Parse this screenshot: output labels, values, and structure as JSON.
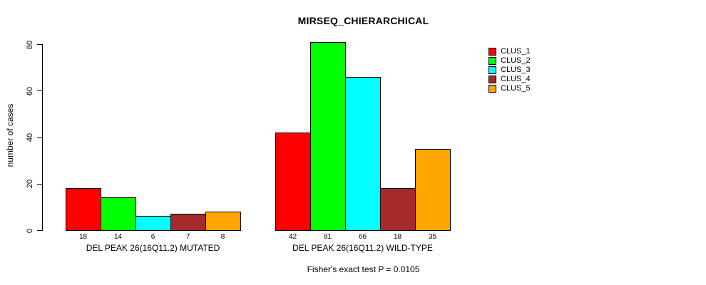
{
  "chart_data": {
    "type": "bar",
    "title": "MIRSEQ_CHIERARCHICAL",
    "ylabel": "number of cases",
    "xlabel": "",
    "ylim": [
      0,
      81
    ],
    "yticks": [
      0,
      20,
      40,
      60,
      80
    ],
    "grid": false,
    "legend_position": "top-right-inside",
    "categories": [
      "DEL PEAK 26(16Q11.2) MUTATED",
      "DEL PEAK 26(16Q11.2) WILD-TYPE"
    ],
    "series": [
      {
        "name": "CLUS_1",
        "color": "#FF0000",
        "values": [
          18,
          42
        ]
      },
      {
        "name": "CLUS_2",
        "color": "#00FF00",
        "values": [
          14,
          81
        ]
      },
      {
        "name": "CLUS_3",
        "color": "#00FFFF",
        "values": [
          6,
          66
        ]
      },
      {
        "name": "CLUS_4",
        "color": "#A52A2A",
        "values": [
          7,
          18
        ]
      },
      {
        "name": "CLUS_5",
        "color": "#FFA500",
        "values": [
          8,
          35
        ]
      }
    ],
    "bar_value_labels": {
      "DEL PEAK 26(16Q11.2) MUTATED": [
        "18",
        "14",
        "6",
        "7",
        "8"
      ],
      "DEL PEAK 26(16Q11.2) WILD-TYPE": [
        "42",
        "81",
        "66",
        "18",
        "35"
      ]
    },
    "footer": "Fisher's exact test P = 0.0105"
  }
}
